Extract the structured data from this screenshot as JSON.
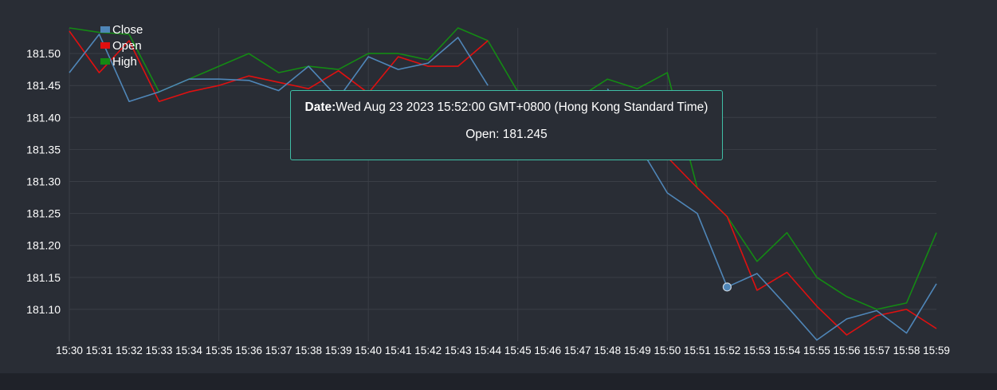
{
  "colors": {
    "background": "#292d35",
    "grid": "#3a3e46",
    "text": "#ffffff",
    "close": "#4f86b8",
    "open": "#e01010",
    "high": "#148a14",
    "tooltip_border": "#3fbfa6"
  },
  "tooltip": {
    "date_label": "Date:",
    "date_value": "Wed Aug 23 2023 15:52:00 GMT+0800 (Hong Kong Standard Time)",
    "value_text": "Open: 181.245"
  },
  "chart_data": {
    "type": "line",
    "title": "",
    "xlabel": "",
    "ylabel": "",
    "x": [
      "15:30",
      "15:31",
      "15:32",
      "15:33",
      "15:34",
      "15:35",
      "15:36",
      "15:37",
      "15:38",
      "15:39",
      "15:40",
      "15:41",
      "15:42",
      "15:43",
      "15:44",
      "15:45",
      "15:46",
      "15:47",
      "15:48",
      "15:49",
      "15:50",
      "15:51",
      "15:52",
      "15:53",
      "15:54",
      "15:55",
      "15:56",
      "15:57",
      "15:58",
      "15:59"
    ],
    "ylim": [
      181.06,
      181.54
    ],
    "yticks": [
      "181.10",
      "181.15",
      "181.20",
      "181.25",
      "181.30",
      "181.35",
      "181.40",
      "181.45",
      "181.50"
    ],
    "grid": true,
    "legend_position": "top-left",
    "highlight": {
      "series": "Close",
      "x": "15:52",
      "value": 181.135
    },
    "series": [
      {
        "name": "Close",
        "color": "#4f86b8",
        "values": [
          181.47,
          181.53,
          181.425,
          181.44,
          181.46,
          181.46,
          181.458,
          181.442,
          181.48,
          181.43,
          181.495,
          181.475,
          181.485,
          181.525,
          181.45,
          null,
          null,
          null,
          181.445,
          181.36,
          181.282,
          181.25,
          181.135,
          181.156,
          181.105,
          181.052,
          181.085,
          181.098,
          181.063,
          181.14
        ]
      },
      {
        "name": "Open",
        "color": "#e01010",
        "values": [
          181.535,
          181.47,
          181.52,
          181.425,
          181.44,
          181.45,
          181.465,
          181.455,
          181.445,
          181.473,
          181.438,
          181.495,
          181.48,
          181.48,
          181.52,
          null,
          null,
          null,
          null,
          181.38,
          181.338,
          181.29,
          181.245,
          181.13,
          181.158,
          181.105,
          181.06,
          181.09,
          181.1,
          181.07
        ]
      },
      {
        "name": "High",
        "color": "#148a14",
        "values": [
          181.54,
          181.533,
          181.53,
          181.44,
          181.46,
          181.48,
          181.5,
          181.47,
          181.48,
          181.475,
          181.5,
          181.5,
          181.49,
          181.54,
          181.52,
          181.44,
          null,
          181.43,
          181.46,
          181.445,
          181.47,
          181.29,
          181.245,
          181.175,
          181.22,
          181.15,
          181.12,
          181.1,
          181.11,
          181.22
        ]
      }
    ]
  }
}
